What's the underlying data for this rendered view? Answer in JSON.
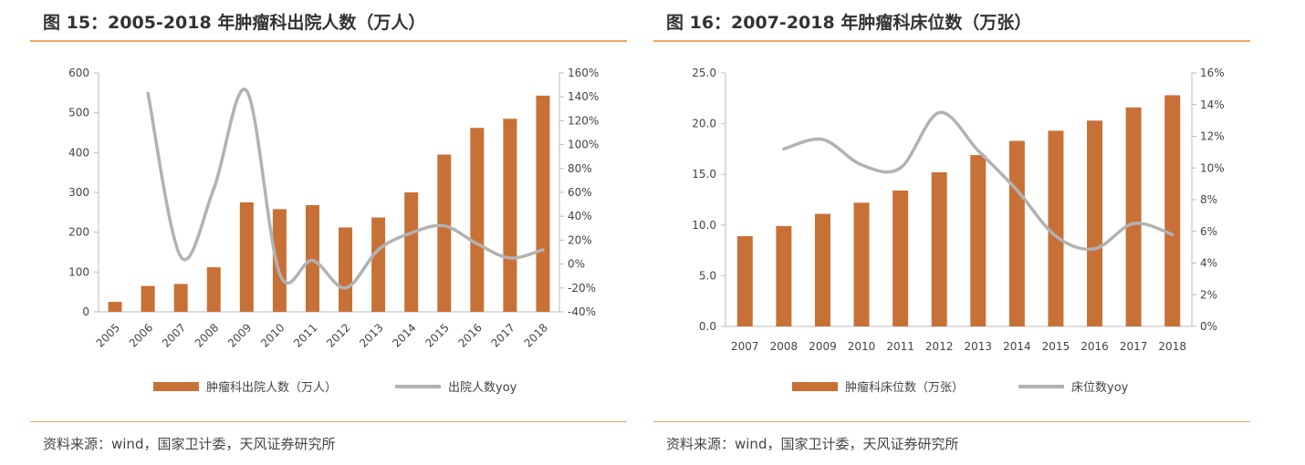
{
  "colors": {
    "bar": "#c87137",
    "line": "#b2b2b2",
    "rule": "#f0a35e",
    "axis": "#bbbbbb"
  },
  "left": {
    "title": "图 15：2005-2018 年肿瘤科出院人数（万人）",
    "source": "资料来源：wind，国家卫计委，天风证券研究所"
  },
  "right": {
    "title": "图 16：2007-2018 年肿瘤科床位数（万张）",
    "source": "资料来源：wind，国家卫计委，天风证券研究所"
  },
  "chart_data": [
    {
      "type": "bar",
      "categories": [
        "2005",
        "2006",
        "2007",
        "2008",
        "2009",
        "2010",
        "2011",
        "2012",
        "2013",
        "2014",
        "2015",
        "2016",
        "2017",
        "2018"
      ],
      "series": [
        {
          "name": "肿瘤科出院人数（万人）",
          "type": "bar",
          "axis": "left",
          "values": [
            25,
            65,
            70,
            112,
            275,
            258,
            268,
            212,
            237,
            300,
            395,
            462,
            485,
            543
          ]
        },
        {
          "name": "出院人数yoy",
          "type": "line",
          "axis": "right",
          "values": [
            null,
            143,
            6,
            63,
            145,
            -8,
            3,
            -20,
            12,
            26,
            32,
            17,
            5,
            12
          ]
        }
      ],
      "ylim": [
        0,
        600
      ],
      "yticks": [
        "0",
        "100",
        "200",
        "300",
        "400",
        "500",
        "600"
      ],
      "y2lim": [
        -40,
        160
      ],
      "y2ticks": [
        "-40%",
        "-20%",
        "0%",
        "20%",
        "40%",
        "60%",
        "80%",
        "100%",
        "120%",
        "140%",
        "160%"
      ],
      "xtick_rotation": -45,
      "legend": "bottom"
    },
    {
      "type": "bar",
      "categories": [
        "2007",
        "2008",
        "2009",
        "2010",
        "2011",
        "2012",
        "2013",
        "2014",
        "2015",
        "2016",
        "2017",
        "2018"
      ],
      "series": [
        {
          "name": "肿瘤科床位数（万张）",
          "type": "bar",
          "axis": "left",
          "values": [
            8.9,
            9.9,
            11.1,
            12.2,
            13.4,
            15.2,
            16.9,
            18.3,
            19.3,
            20.3,
            21.6,
            22.8
          ]
        },
        {
          "name": "床位数yoy",
          "type": "line",
          "axis": "right",
          "values": [
            null,
            11.2,
            11.8,
            10.2,
            10.0,
            13.5,
            11.1,
            8.6,
            5.7,
            4.9,
            6.5,
            5.8
          ]
        }
      ],
      "ylim": [
        0,
        25
      ],
      "yticks": [
        "0.0",
        "5.0",
        "10.0",
        "15.0",
        "20.0",
        "25.0"
      ],
      "y2lim": [
        0,
        16
      ],
      "y2ticks": [
        "0%",
        "2%",
        "4%",
        "6%",
        "8%",
        "10%",
        "12%",
        "14%",
        "16%"
      ],
      "xtick_rotation": 0,
      "legend": "bottom"
    }
  ]
}
